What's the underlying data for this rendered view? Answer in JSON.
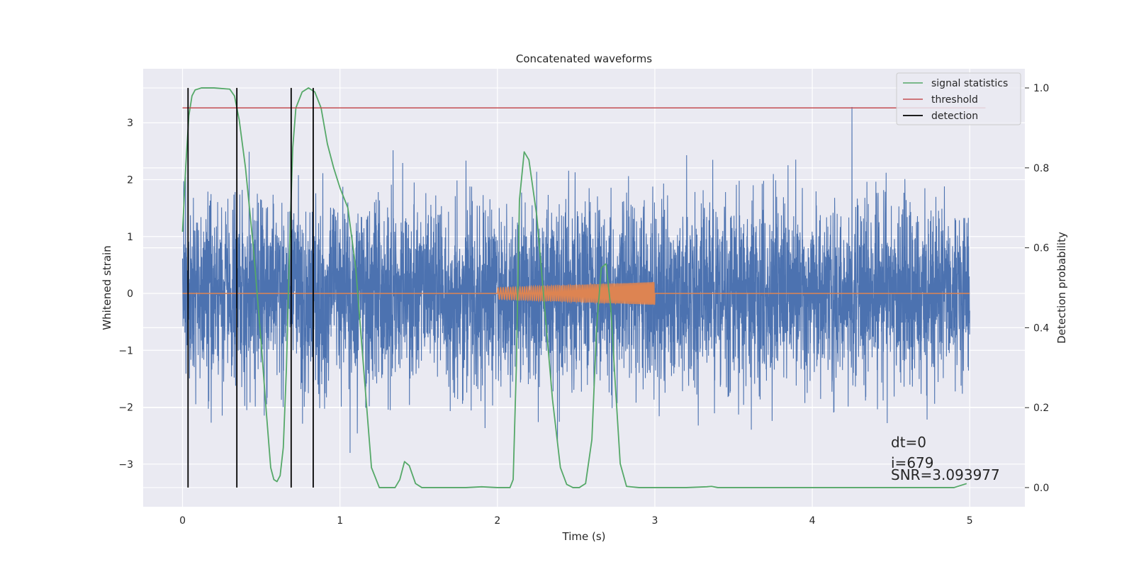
{
  "chart_data": {
    "type": "line",
    "title": "Concatenated waveforms",
    "xlabel": "Time (s)",
    "ylabel": "Whitened strain",
    "y2label": "Detection probability",
    "xlim": [
      -0.25,
      5.35
    ],
    "ylim": [
      -3.75,
      3.95
    ],
    "y2lim": [
      -0.048,
      1.048
    ],
    "xticks": [
      0,
      1,
      2,
      3,
      4,
      5
    ],
    "yticks": [
      -3,
      -2,
      -1,
      0,
      1,
      2,
      3
    ],
    "y2ticks": [
      0.0,
      0.2,
      0.4,
      0.6,
      0.8,
      1.0
    ],
    "xtick_labels": [
      "0",
      "1",
      "2",
      "3",
      "4",
      "5"
    ],
    "ytick_labels": [
      "−3",
      "−2",
      "−1",
      "0",
      "1",
      "2",
      "3"
    ],
    "y2tick_labels": [
      "0.0",
      "0.2",
      "0.4",
      "0.6",
      "0.8",
      "1.0"
    ],
    "grid": true,
    "legend_position": "top-right",
    "legend": [
      {
        "label": "signal statistics",
        "color": "#55a868"
      },
      {
        "label": "threshold",
        "color": "#c44e52"
      },
      {
        "label": "detection",
        "color": "#000000"
      }
    ],
    "series": [
      {
        "kind": "noise",
        "axis": "left",
        "color": "#4c72b0",
        "x_range": [
          0,
          5
        ],
        "amplitude_std": 1.0,
        "approx_max": 3.6,
        "approx_min": -3.4
      },
      {
        "kind": "chirp",
        "axis": "left",
        "color": "#dd8452",
        "x_range": [
          2,
          3
        ],
        "amplitude_start": 0.1,
        "amplitude_end": 0.2,
        "baseline_range": [
          0,
          5
        ],
        "baseline": 0
      },
      {
        "kind": "line",
        "axis": "right",
        "name": "signal statistics",
        "color": "#55a868",
        "x": [
          0.0,
          0.02,
          0.04,
          0.06,
          0.08,
          0.12,
          0.2,
          0.3,
          0.33,
          0.36,
          0.4,
          0.45,
          0.5,
          0.53,
          0.56,
          0.58,
          0.6,
          0.62,
          0.64,
          0.66,
          0.68,
          0.7,
          0.72,
          0.76,
          0.8,
          0.84,
          0.88,
          0.92,
          0.96,
          1.0,
          1.05,
          1.1,
          1.15,
          1.2,
          1.25,
          1.3,
          1.35,
          1.38,
          1.41,
          1.44,
          1.48,
          1.52,
          1.6,
          1.8,
          1.9,
          2.0,
          2.08,
          2.1,
          2.12,
          2.14,
          2.17,
          2.2,
          2.25,
          2.3,
          2.35,
          2.4,
          2.44,
          2.48,
          2.52,
          2.56,
          2.6,
          2.63,
          2.66,
          2.69,
          2.72,
          2.75,
          2.78,
          2.82,
          2.9,
          3.0,
          3.2,
          3.33,
          3.36,
          3.4,
          3.6,
          4.0,
          4.5,
          4.9,
          4.98
        ],
        "values": [
          0.64,
          0.8,
          0.93,
          0.98,
          0.995,
          1.0,
          1.0,
          0.997,
          0.98,
          0.92,
          0.8,
          0.6,
          0.36,
          0.2,
          0.05,
          0.02,
          0.015,
          0.03,
          0.1,
          0.3,
          0.6,
          0.85,
          0.95,
          0.99,
          1.0,
          0.99,
          0.95,
          0.86,
          0.8,
          0.75,
          0.7,
          0.55,
          0.3,
          0.05,
          0.0,
          0.0,
          0.0,
          0.02,
          0.065,
          0.055,
          0.01,
          0.0,
          0.0,
          0.0,
          0.002,
          0.0,
          0.0,
          0.02,
          0.3,
          0.72,
          0.84,
          0.82,
          0.68,
          0.45,
          0.22,
          0.05,
          0.008,
          0.0,
          0.0,
          0.01,
          0.12,
          0.4,
          0.55,
          0.56,
          0.45,
          0.25,
          0.06,
          0.003,
          0.0,
          0.0,
          0.0,
          0.002,
          0.003,
          0.0,
          0.0,
          0.0,
          0.0,
          0.0,
          0.01
        ]
      },
      {
        "kind": "hline",
        "axis": "right",
        "name": "threshold",
        "color": "#c44e52",
        "y": 0.95,
        "x_range": [
          0,
          5.1
        ]
      },
      {
        "kind": "vlines",
        "axis": "right",
        "name": "detection",
        "color": "#000000",
        "x": [
          0.035,
          0.345,
          0.69,
          0.83
        ],
        "y_range": [
          0,
          1
        ]
      }
    ],
    "annotations": [
      "dt=0",
      "i=679",
      "SNR=3.093977"
    ]
  }
}
